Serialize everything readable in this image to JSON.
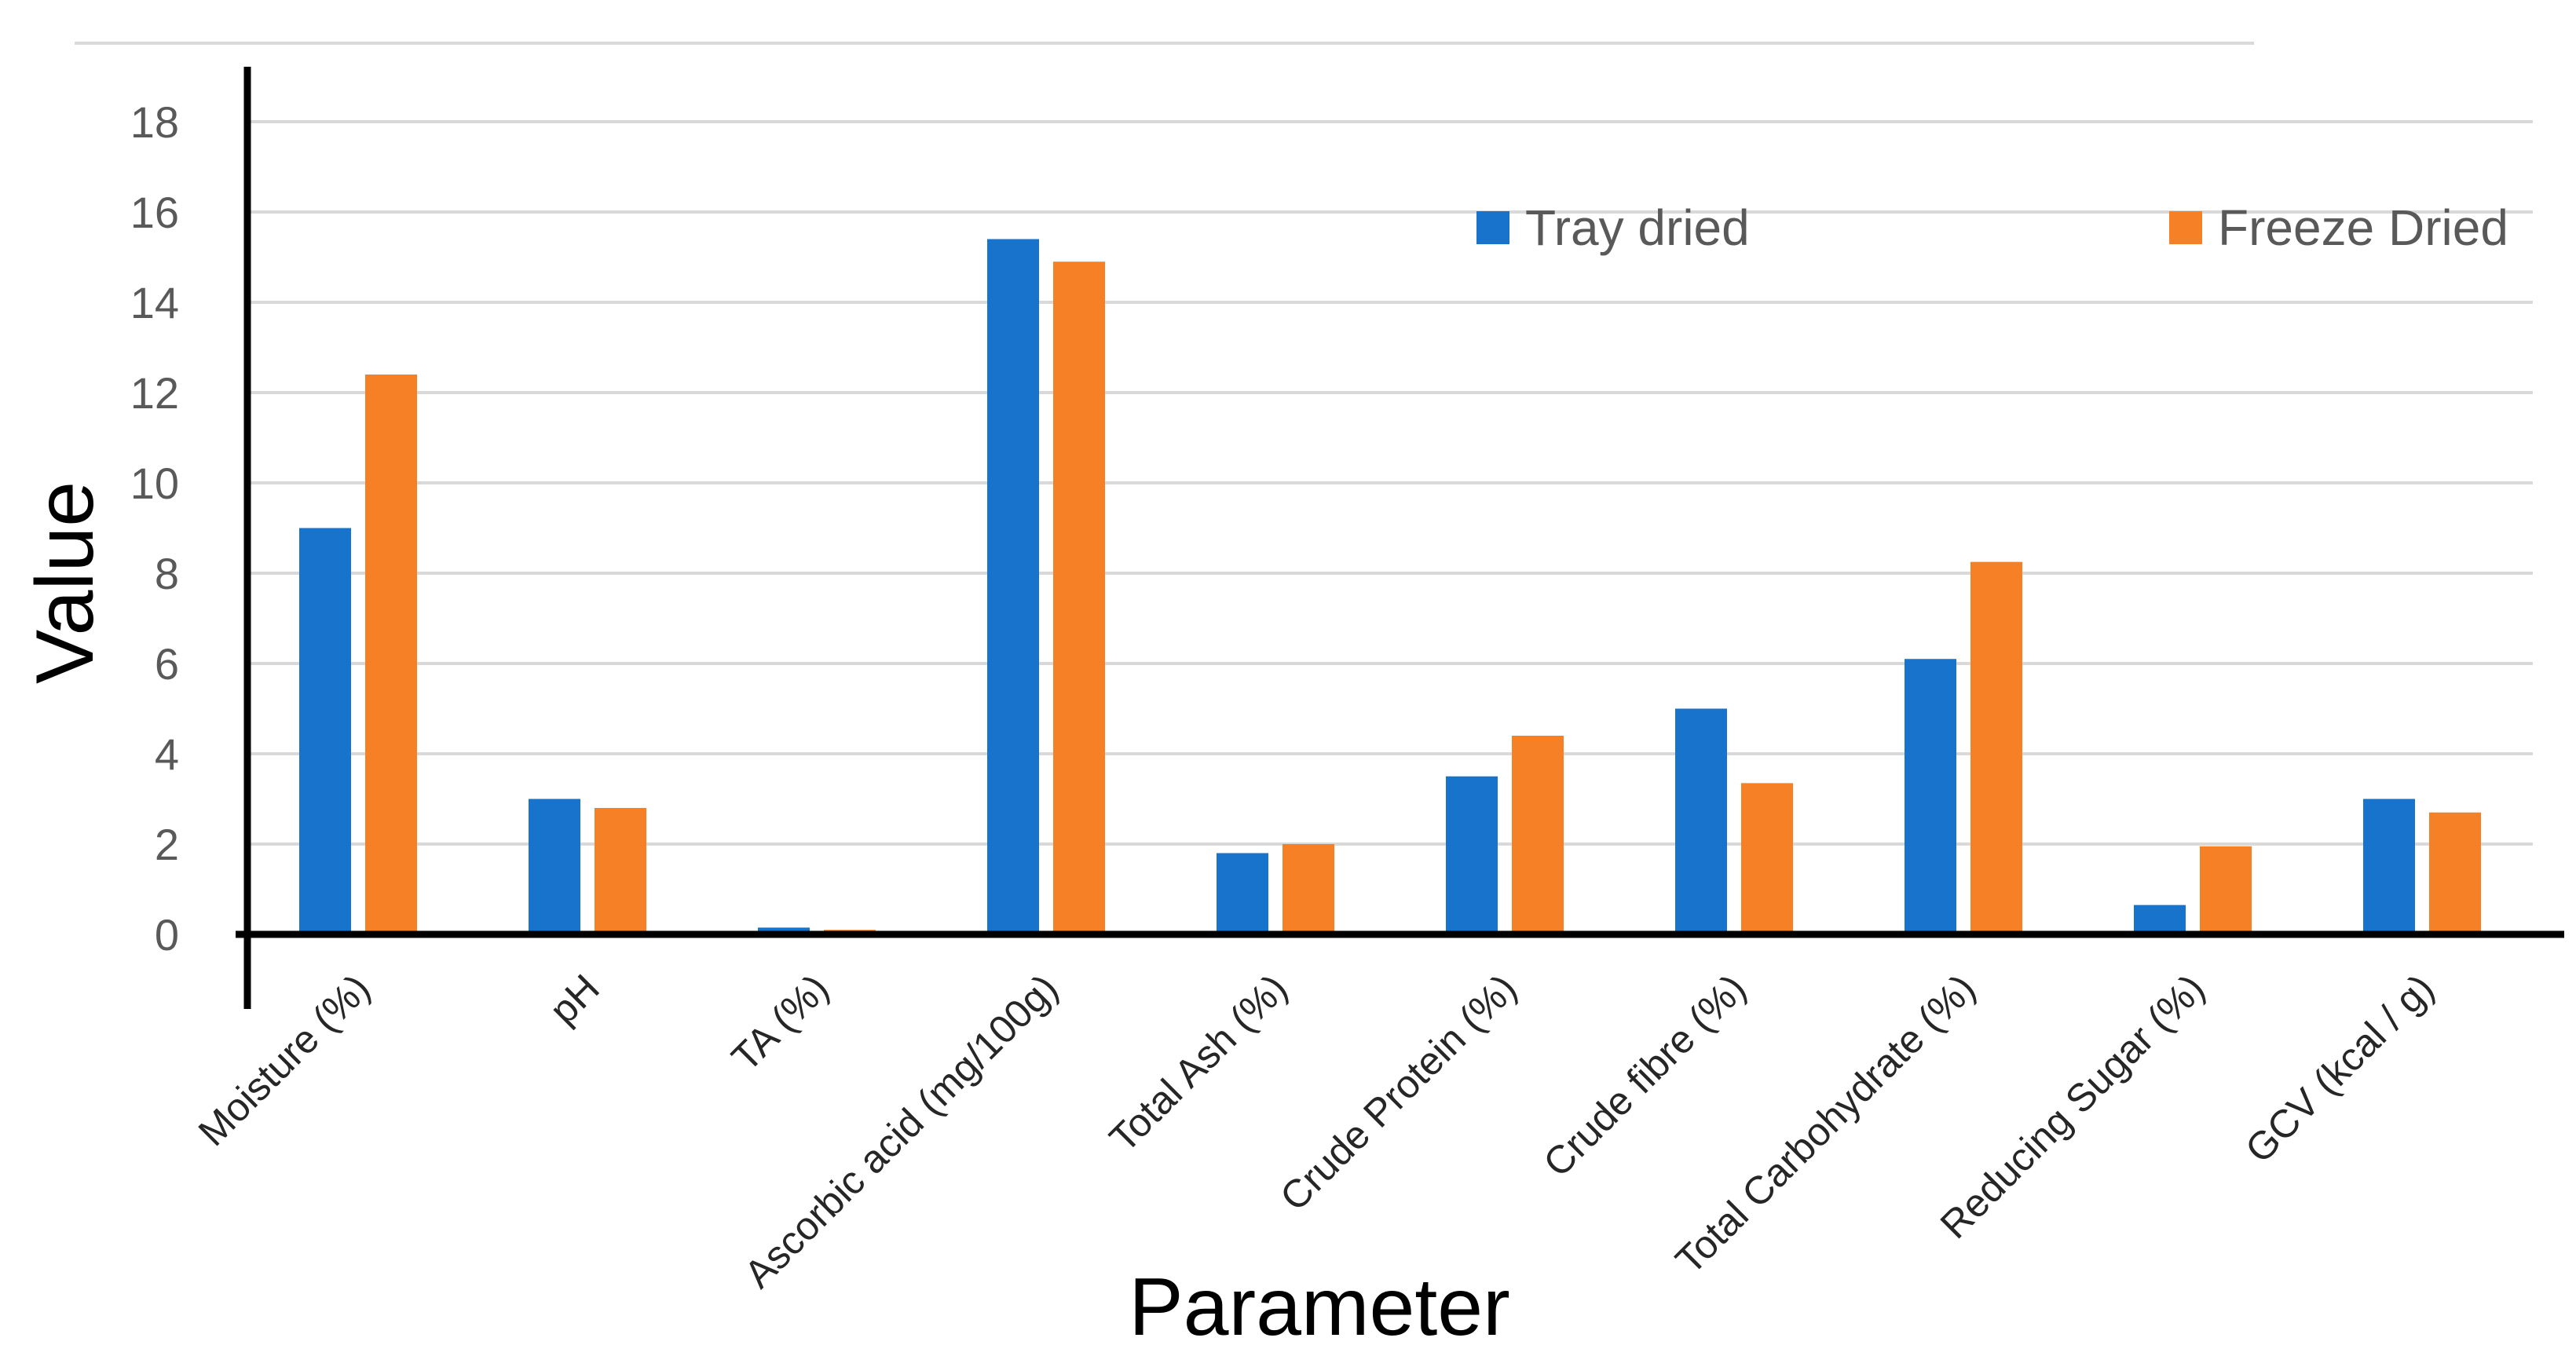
{
  "chart_data": {
    "type": "bar",
    "title": "",
    "xlabel": "Parameter",
    "ylabel": "Value",
    "ylim": [
      0,
      18
    ],
    "yticks": [
      0,
      2,
      4,
      6,
      8,
      10,
      12,
      14,
      16,
      18
    ],
    "grid": true,
    "legend_position": "top-right",
    "categories": [
      "Moisture (%)",
      "pH",
      "TA (%)",
      "Ascorbic acid (mg/100g)",
      "Total Ash (%)",
      "Crude Protein (%)",
      "Crude fibre (%)",
      "Total Carbohydrate (%)",
      "Reducing Sugar (%)",
      "GCV (kcal / g)"
    ],
    "series": [
      {
        "name": "Tray dried",
        "color": "#1873CC",
        "values": [
          9.0,
          3.0,
          0.15,
          15.4,
          1.8,
          3.5,
          5.0,
          6.1,
          0.65,
          3.0
        ]
      },
      {
        "name": "Freeze Dried",
        "color": "#F58026",
        "values": [
          12.4,
          2.8,
          0.1,
          14.9,
          2.0,
          4.4,
          3.35,
          8.25,
          1.95,
          2.7
        ]
      }
    ]
  }
}
